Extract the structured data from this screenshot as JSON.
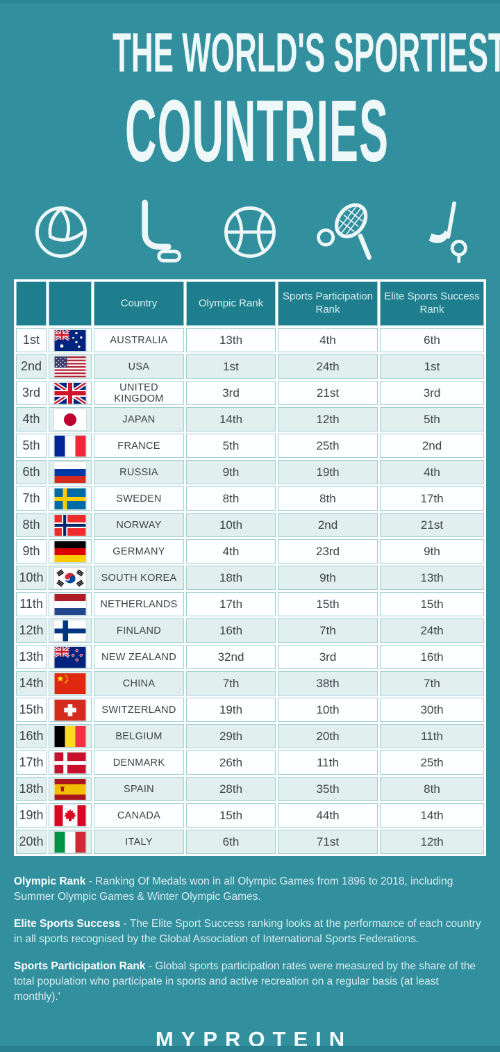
{
  "header": {
    "title_line1": "THE WORLD'S SPORTIEST",
    "title_line2": "COUNTRIES"
  },
  "sports_icons": [
    "volleyball",
    "ice-hockey-stick-and-puck",
    "basketball",
    "tennis-racket-and-ball",
    "golf-club-and-ball"
  ],
  "colors": {
    "background": "#318f9e",
    "table_header_bg": "#1f7e8e",
    "row_light": "#fdfeff",
    "row_alt": "#e1efef",
    "cell_border": "#9fcdd2",
    "text_dark": "#3e4245",
    "text_light": "#eef8f8"
  },
  "table": {
    "headers": [
      "",
      "",
      "Country",
      "Olympic Rank",
      "Sports Participation Rank",
      "Elite Sports Success Rank"
    ],
    "rows": [
      {
        "position": "1st",
        "flag": "australia-flag",
        "country": "AUSTRALIA",
        "olympic_rank": "13th",
        "sports_participation_rank": "4th",
        "elite_sports_success_rank": "6th"
      },
      {
        "position": "2nd",
        "flag": "usa-flag",
        "country": "USA",
        "olympic_rank": "1st",
        "sports_participation_rank": "24th",
        "elite_sports_success_rank": "1st"
      },
      {
        "position": "3rd",
        "flag": "united-kingdom-flag",
        "country": "UNITED KINGDOM",
        "olympic_rank": "3rd",
        "sports_participation_rank": "21st",
        "elite_sports_success_rank": "3rd"
      },
      {
        "position": "4th",
        "flag": "japan-flag",
        "country": "JAPAN",
        "olympic_rank": "14th",
        "sports_participation_rank": "12th",
        "elite_sports_success_rank": "5th"
      },
      {
        "position": "5th",
        "flag": "france-flag",
        "country": "FRANCE",
        "olympic_rank": "5th",
        "sports_participation_rank": "25th",
        "elite_sports_success_rank": "2nd"
      },
      {
        "position": "6th",
        "flag": "russia-flag",
        "country": "RUSSIA",
        "olympic_rank": "9th",
        "sports_participation_rank": "19th",
        "elite_sports_success_rank": "4th"
      },
      {
        "position": "7th",
        "flag": "sweden-flag",
        "country": "SWEDEN",
        "olympic_rank": "8th",
        "sports_participation_rank": "8th",
        "elite_sports_success_rank": "17th"
      },
      {
        "position": "8th",
        "flag": "norway-flag",
        "country": "NORWAY",
        "olympic_rank": "10th",
        "sports_participation_rank": "2nd",
        "elite_sports_success_rank": "21st"
      },
      {
        "position": "9th",
        "flag": "germany-flag",
        "country": "GERMANY",
        "olympic_rank": "4th",
        "sports_participation_rank": "23rd",
        "elite_sports_success_rank": "9th"
      },
      {
        "position": "10th",
        "flag": "south-korea-flag",
        "country": "SOUTH KOREA",
        "olympic_rank": "18th",
        "sports_participation_rank": "9th",
        "elite_sports_success_rank": "13th"
      },
      {
        "position": "11th",
        "flag": "netherlands-flag",
        "country": "NETHERLANDS",
        "olympic_rank": "17th",
        "sports_participation_rank": "15th",
        "elite_sports_success_rank": "15th"
      },
      {
        "position": "12th",
        "flag": "finland-flag",
        "country": "FINLAND",
        "olympic_rank": "16th",
        "sports_participation_rank": "7th",
        "elite_sports_success_rank": "24th"
      },
      {
        "position": "13th",
        "flag": "new-zealand-flag",
        "country": "NEW ZEALAND",
        "olympic_rank": "32nd",
        "sports_participation_rank": "3rd",
        "elite_sports_success_rank": "16th"
      },
      {
        "position": "14th",
        "flag": "china-flag",
        "country": "CHINA",
        "olympic_rank": "7th",
        "sports_participation_rank": "38th",
        "elite_sports_success_rank": "7th"
      },
      {
        "position": "15th",
        "flag": "switzerland-flag",
        "country": "SWITZERLAND",
        "olympic_rank": "19th",
        "sports_participation_rank": "10th",
        "elite_sports_success_rank": "30th"
      },
      {
        "position": "16th",
        "flag": "belgium-flag",
        "country": "BELGIUM",
        "olympic_rank": "29th",
        "sports_participation_rank": "20th",
        "elite_sports_success_rank": "11th"
      },
      {
        "position": "17th",
        "flag": "denmark-flag",
        "country": "DENMARK",
        "olympic_rank": "26th",
        "sports_participation_rank": "11th",
        "elite_sports_success_rank": "25th"
      },
      {
        "position": "18th",
        "flag": "spain-flag",
        "country": "SPAIN",
        "olympic_rank": "28th",
        "sports_participation_rank": "35th",
        "elite_sports_success_rank": "8th"
      },
      {
        "position": "19th",
        "flag": "canada-flag",
        "country": "CANADA",
        "olympic_rank": "15th",
        "sports_participation_rank": "44th",
        "elite_sports_success_rank": "14th"
      },
      {
        "position": "20th",
        "flag": "italy-flag",
        "country": "ITALY",
        "olympic_rank": "6th",
        "sports_participation_rank": "71st",
        "elite_sports_success_rank": "12th"
      }
    ]
  },
  "chart_data": {
    "type": "table",
    "title": "THE WORLD'S SPORTIEST COUNTRIES",
    "columns": [
      "Position",
      "Country",
      "Olympic Rank",
      "Sports Participation Rank",
      "Elite Sports Success Rank"
    ],
    "rows": [
      [
        "1st",
        "AUSTRALIA",
        "13th",
        "4th",
        "6th"
      ],
      [
        "2nd",
        "USA",
        "1st",
        "24th",
        "1st"
      ],
      [
        "3rd",
        "UNITED KINGDOM",
        "3rd",
        "21st",
        "3rd"
      ],
      [
        "4th",
        "JAPAN",
        "14th",
        "12th",
        "5th"
      ],
      [
        "5th",
        "FRANCE",
        "5th",
        "25th",
        "2nd"
      ],
      [
        "6th",
        "RUSSIA",
        "9th",
        "19th",
        "4th"
      ],
      [
        "7th",
        "SWEDEN",
        "8th",
        "8th",
        "17th"
      ],
      [
        "8th",
        "NORWAY",
        "10th",
        "2nd",
        "21st"
      ],
      [
        "9th",
        "GERMANY",
        "4th",
        "23rd",
        "9th"
      ],
      [
        "10th",
        "SOUTH KOREA",
        "18th",
        "9th",
        "13th"
      ],
      [
        "11th",
        "NETHERLANDS",
        "17th",
        "15th",
        "15th"
      ],
      [
        "12th",
        "FINLAND",
        "16th",
        "7th",
        "24th"
      ],
      [
        "13th",
        "NEW ZEALAND",
        "32nd",
        "3rd",
        "16th"
      ],
      [
        "14th",
        "CHINA",
        "7th",
        "38th",
        "7th"
      ],
      [
        "15th",
        "SWITZERLAND",
        "19th",
        "10th",
        "30th"
      ],
      [
        "16th",
        "BELGIUM",
        "29th",
        "20th",
        "11th"
      ],
      [
        "17th",
        "DENMARK",
        "26th",
        "11th",
        "25th"
      ],
      [
        "18th",
        "SPAIN",
        "28th",
        "35th",
        "8th"
      ],
      [
        "19th",
        "CANADA",
        "15th",
        "44th",
        "14th"
      ],
      [
        "20th",
        "ITALY",
        "6th",
        "71st",
        "12th"
      ]
    ]
  },
  "footnotes": [
    {
      "label": "Olympic Rank",
      "text": " - Ranking Of Medals won in all Olympic Games from 1896 to 2018, including Summer Olympic Games & Winter Olympic Games."
    },
    {
      "label": "Elite Sports Success",
      "text": " - The Elite Sport Success ranking looks at the performance of each country in all sports recognised by the Global Association of International Sports Federations."
    },
    {
      "label": "Sports Participation Rank",
      "text": " - Global sports participation rates were measured by the share of the total population who participate in sports and active recreation on a regular basis (at least monthly).'"
    }
  ],
  "footer": {
    "logo": "MYPROTEIN"
  }
}
